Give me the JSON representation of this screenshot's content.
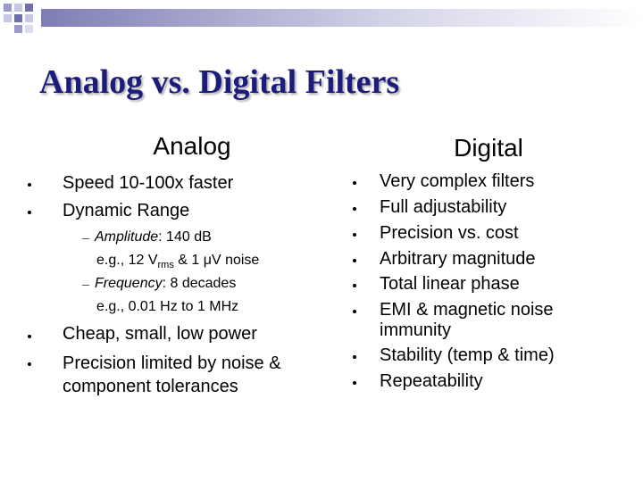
{
  "title": "Analog vs. Digital Filters",
  "left": {
    "heading": "Analog",
    "bullets_top": [
      "Speed 10-100x faster",
      "Dynamic Range"
    ],
    "sub_bullets": [
      {
        "term": "Amplitude",
        "text": ": 140 dB",
        "detail": [
          "e.g., 12 V",
          "rms",
          " & 1 μV noise"
        ]
      },
      {
        "term": "Frequency",
        "text": ": 8 decades",
        "detail": [
          "e.g., 0.01 Hz to 1 MHz"
        ]
      }
    ],
    "bullets_bottom": [
      "Cheap, small, low power",
      "Precision limited by noise & component tolerances"
    ]
  },
  "right": {
    "heading": "Digital",
    "bullets": [
      "Very complex filters",
      "Full adjustability",
      "Precision vs. cost",
      "Arbitrary magnitude",
      "Total linear phase",
      "EMI & magnetic noise immunity",
      "Stability (temp & time)",
      "Repeatability"
    ]
  }
}
